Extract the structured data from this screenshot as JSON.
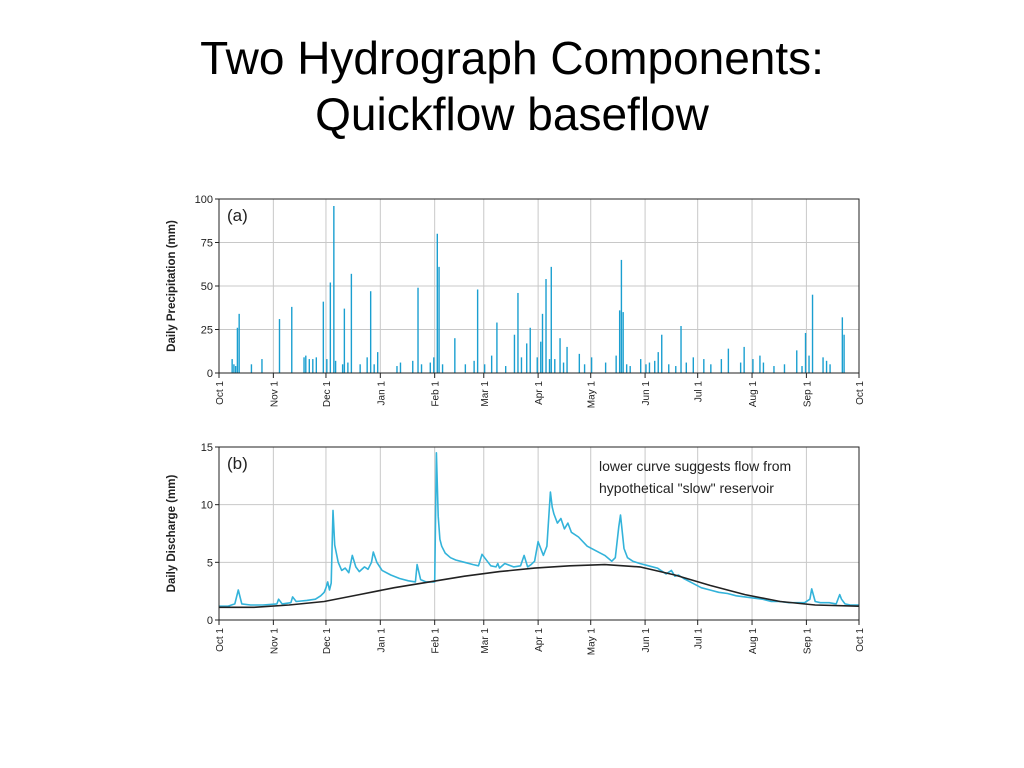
{
  "slide": {
    "title_line1": "Two Hydrograph Components:",
    "title_line2": "Quickflow baseflow"
  },
  "colors": {
    "precip": "#1a9fd0",
    "discharge": "#33b3da",
    "baseflow": "#222222",
    "grid": "#c8c8c8"
  },
  "chart_data": [
    {
      "type": "bar",
      "panel_label": "(a)",
      "ylabel": "Daily Precipitation (mm)",
      "ylim": [
        0,
        100
      ],
      "yticks": [
        0,
        25,
        50,
        75,
        100
      ],
      "xlim": [
        0,
        365
      ],
      "month_ticks": [
        {
          "label": "Oct 1",
          "day": 0
        },
        {
          "label": "Nov 1",
          "day": 31
        },
        {
          "label": "Dec 1",
          "day": 61
        },
        {
          "label": "Jan 1",
          "day": 92
        },
        {
          "label": "Feb 1",
          "day": 123
        },
        {
          "label": "Mar 1",
          "day": 151
        },
        {
          "label": "Apr 1",
          "day": 182
        },
        {
          "label": "May 1",
          "day": 212
        },
        {
          "label": "Jun 1",
          "day": 243
        },
        {
          "label": "Jul 1",
          "day": 273
        },
        {
          "label": "Aug 1",
          "day": 304
        },
        {
          "label": "Sep 1",
          "day": 335
        },
        {
          "label": "Oct 1",
          "day": 365
        }
      ],
      "grid": true,
      "bars": [
        [
          7,
          8
        ],
        [
          8,
          5
        ],
        [
          9,
          4
        ],
        [
          10,
          26
        ],
        [
          11,
          34
        ],
        [
          18,
          5
        ],
        [
          24,
          8
        ],
        [
          34,
          31
        ],
        [
          41,
          38
        ],
        [
          48,
          9
        ],
        [
          49,
          10
        ],
        [
          51,
          8
        ],
        [
          53,
          8
        ],
        [
          55,
          9
        ],
        [
          59,
          41
        ],
        [
          61,
          8
        ],
        [
          63,
          52
        ],
        [
          65,
          96
        ],
        [
          66,
          7
        ],
        [
          70,
          5
        ],
        [
          71,
          37
        ],
        [
          73,
          6
        ],
        [
          75,
          57
        ],
        [
          80,
          5
        ],
        [
          84,
          9
        ],
        [
          86,
          47
        ],
        [
          88,
          5
        ],
        [
          90,
          12
        ],
        [
          101,
          4
        ],
        [
          103,
          6
        ],
        [
          110,
          7
        ],
        [
          113,
          49
        ],
        [
          115,
          5
        ],
        [
          120,
          6
        ],
        [
          122,
          9
        ],
        [
          124,
          80
        ],
        [
          125,
          61
        ],
        [
          127,
          5
        ],
        [
          134,
          20
        ],
        [
          140,
          5
        ],
        [
          145,
          7
        ],
        [
          147,
          48
        ],
        [
          151,
          5
        ],
        [
          155,
          10
        ],
        [
          158,
          29
        ],
        [
          163,
          4
        ],
        [
          168,
          22
        ],
        [
          170,
          46
        ],
        [
          172,
          9
        ],
        [
          175,
          17
        ],
        [
          177,
          26
        ],
        [
          181,
          9
        ],
        [
          183,
          18
        ],
        [
          184,
          34
        ],
        [
          186,
          54
        ],
        [
          188,
          8
        ],
        [
          189,
          61
        ],
        [
          191,
          8
        ],
        [
          194,
          20
        ],
        [
          196,
          6
        ],
        [
          198,
          15
        ],
        [
          205,
          11
        ],
        [
          208,
          5
        ],
        [
          212,
          9
        ],
        [
          220,
          6
        ],
        [
          226,
          10
        ],
        [
          228,
          36
        ],
        [
          229,
          65
        ],
        [
          230,
          35
        ],
        [
          232,
          5
        ],
        [
          234,
          4
        ],
        [
          240,
          8
        ],
        [
          243,
          5
        ],
        [
          245,
          6
        ],
        [
          248,
          7
        ],
        [
          250,
          12
        ],
        [
          252,
          22
        ],
        [
          256,
          5
        ],
        [
          260,
          4
        ],
        [
          263,
          27
        ],
        [
          266,
          6
        ],
        [
          270,
          9
        ],
        [
          276,
          8
        ],
        [
          280,
          5
        ],
        [
          286,
          8
        ],
        [
          290,
          14
        ],
        [
          297,
          6
        ],
        [
          299,
          15
        ],
        [
          304,
          8
        ],
        [
          308,
          10
        ],
        [
          310,
          6
        ],
        [
          316,
          4
        ],
        [
          322,
          5
        ],
        [
          329,
          13
        ],
        [
          332,
          4
        ],
        [
          334,
          23
        ],
        [
          336,
          10
        ],
        [
          338,
          45
        ],
        [
          344,
          9
        ],
        [
          346,
          7
        ],
        [
          348,
          5
        ],
        [
          355,
          32
        ],
        [
          356,
          22
        ]
      ]
    },
    {
      "type": "line",
      "panel_label": "(b)",
      "ylabel": "Daily Discharge (mm)",
      "ylim": [
        0,
        15
      ],
      "yticks": [
        0,
        5,
        10,
        15
      ],
      "xlim": [
        0,
        365
      ],
      "month_ticks": [
        {
          "label": "Oct 1",
          "day": 0
        },
        {
          "label": "Nov 1",
          "day": 31
        },
        {
          "label": "Dec 1",
          "day": 61
        },
        {
          "label": "Jan 1",
          "day": 92
        },
        {
          "label": "Feb 1",
          "day": 123
        },
        {
          "label": "Mar 1",
          "day": 151
        },
        {
          "label": "Apr 1",
          "day": 182
        },
        {
          "label": "May 1",
          "day": 212
        },
        {
          "label": "Jun 1",
          "day": 243
        },
        {
          "label": "Jul 1",
          "day": 273
        },
        {
          "label": "Aug 1",
          "day": 304
        },
        {
          "label": "Sep 1",
          "day": 335
        },
        {
          "label": "Oct 1",
          "day": 365
        }
      ],
      "grid": true,
      "annotation_line1": "lower curve suggests flow from",
      "annotation_line2": "hypothetical \"slow\" reservoir",
      "series": [
        {
          "x": [
            0,
            5,
            9,
            11,
            13,
            18,
            25,
            33,
            34,
            36,
            41,
            42,
            44,
            50,
            55,
            58,
            60,
            61,
            62,
            63,
            64,
            65,
            66,
            68,
            70,
            72,
            74,
            76,
            78,
            80,
            83,
            85,
            87,
            88,
            90,
            93,
            98,
            103,
            108,
            112,
            113,
            115,
            118,
            121,
            123,
            124,
            125,
            126,
            127,
            129,
            132,
            135,
            140,
            145,
            148,
            150,
            155,
            158,
            159,
            160,
            163,
            168,
            172,
            174,
            176,
            178,
            180,
            182,
            184,
            185,
            187,
            189,
            190,
            191,
            193,
            195,
            197,
            199,
            201,
            205,
            210,
            215,
            220,
            224,
            226,
            228,
            229,
            231,
            233,
            236,
            240,
            245,
            250,
            255,
            258,
            260,
            262,
            265,
            270,
            275,
            280,
            285,
            290,
            295,
            300,
            305,
            310,
            315,
            320,
            325,
            330,
            334,
            337,
            338,
            340,
            343,
            348,
            352,
            354,
            355,
            357,
            360,
            365
          ],
          "y": [
            1.2,
            1.2,
            1.4,
            2.6,
            1.4,
            1.3,
            1.3,
            1.4,
            1.8,
            1.4,
            1.5,
            2.0,
            1.6,
            1.7,
            1.8,
            2.1,
            2.4,
            2.8,
            3.3,
            2.6,
            3.2,
            9.5,
            6.5,
            5.0,
            4.3,
            4.5,
            4.1,
            5.6,
            4.6,
            4.2,
            4.6,
            4.4,
            5.0,
            5.9,
            5.0,
            4.3,
            3.9,
            3.6,
            3.4,
            3.3,
            4.8,
            3.5,
            3.3,
            3.3,
            3.3,
            14.5,
            9.0,
            7.0,
            6.4,
            5.8,
            5.4,
            5.2,
            5.0,
            4.8,
            4.7,
            5.7,
            4.7,
            4.6,
            4.9,
            4.5,
            4.9,
            4.6,
            4.7,
            5.6,
            4.6,
            4.8,
            5.1,
            6.8,
            6.0,
            5.6,
            6.4,
            11.1,
            9.8,
            9.2,
            8.4,
            8.8,
            7.9,
            8.4,
            7.6,
            7.2,
            6.4,
            6.0,
            5.6,
            5.1,
            5.4,
            8.1,
            9.1,
            6.2,
            5.4,
            5.1,
            4.9,
            4.7,
            4.5,
            4.0,
            4.3,
            3.8,
            3.9,
            3.6,
            3.2,
            2.8,
            2.6,
            2.4,
            2.3,
            2.1,
            2.0,
            1.9,
            1.8,
            1.6,
            1.6,
            1.5,
            1.5,
            1.5,
            1.8,
            2.7,
            1.6,
            1.5,
            1.5,
            1.4,
            2.2,
            1.8,
            1.4,
            1.3,
            1.3
          ]
        },
        {
          "x": [
            0,
            20,
            40,
            60,
            80,
            100,
            120,
            140,
            160,
            180,
            200,
            220,
            240,
            260,
            280,
            300,
            320,
            340,
            365
          ],
          "y": [
            1.1,
            1.1,
            1.3,
            1.6,
            2.2,
            2.8,
            3.3,
            3.8,
            4.2,
            4.5,
            4.7,
            4.8,
            4.6,
            3.9,
            3.0,
            2.2,
            1.6,
            1.3,
            1.2
          ]
        }
      ]
    }
  ]
}
